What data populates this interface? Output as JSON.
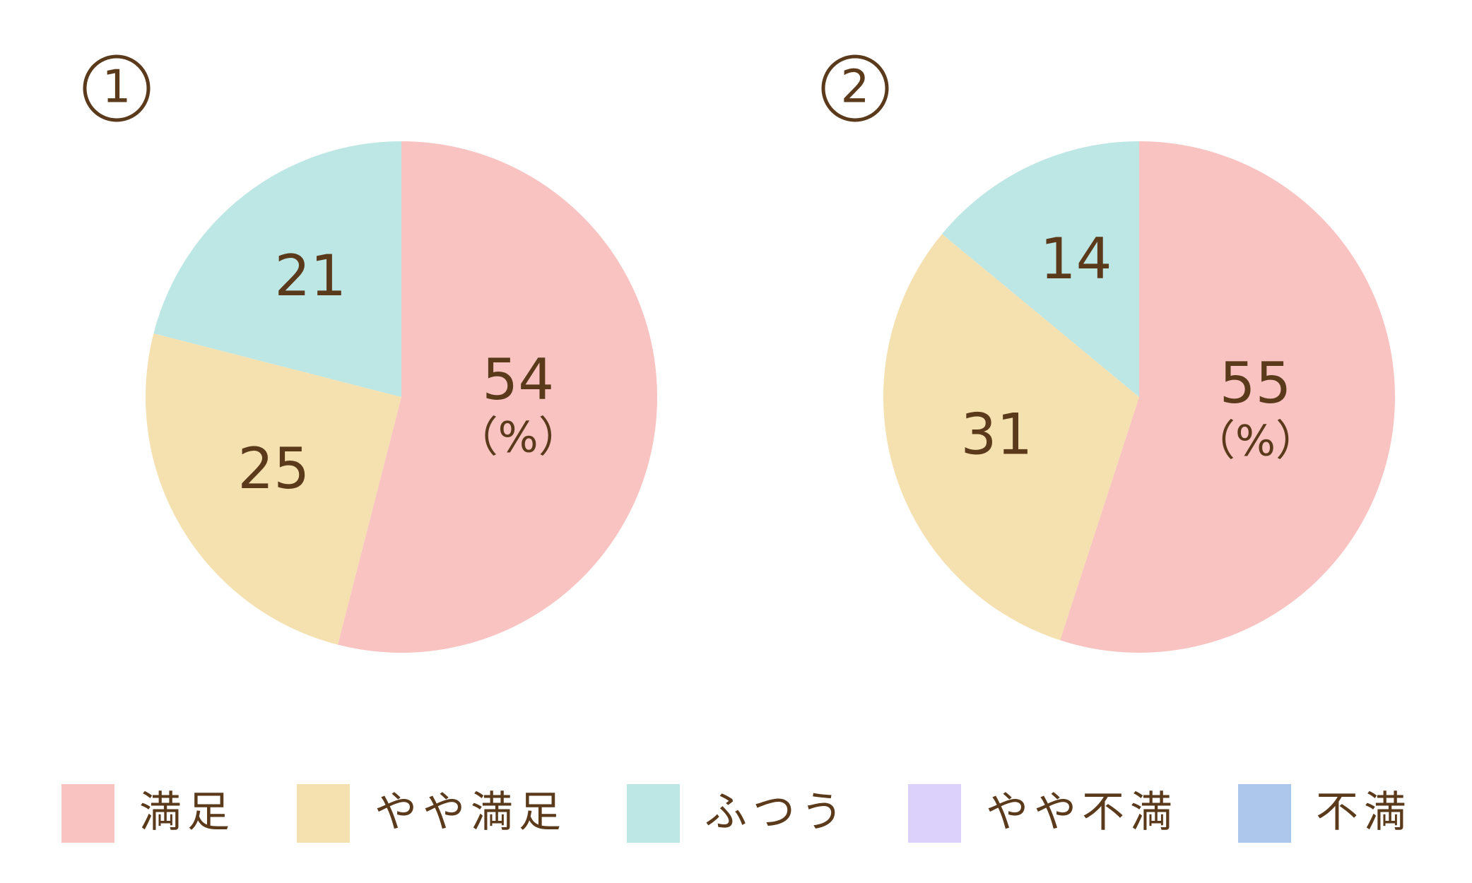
{
  "colors": {
    "text": "#5a3a1a",
    "background": "#ffffff"
  },
  "percent_unit": "（%）",
  "chart_data": [
    {
      "type": "pie",
      "panel_label": "①",
      "direction": "clockwise from 12 o'clock",
      "slices": [
        {
          "category": "満足",
          "value": 54,
          "color": "#f8c3c1"
        },
        {
          "category": "やや満足",
          "value": 25,
          "color": "#f5e0b0"
        },
        {
          "category": "ふつう",
          "value": 21,
          "color": "#bde7e5"
        }
      ]
    },
    {
      "type": "pie",
      "panel_label": "②",
      "direction": "clockwise from 12 o'clock",
      "slices": [
        {
          "category": "満足",
          "value": 55,
          "color": "#f8c3c1"
        },
        {
          "category": "やや満足",
          "value": 31,
          "color": "#f5e0b0"
        },
        {
          "category": "ふつう",
          "value": 14,
          "color": "#bde7e5"
        }
      ]
    }
  ],
  "legend": [
    {
      "label": "満足",
      "color": "#f8c3c1"
    },
    {
      "label": "やや満足",
      "color": "#f5e0b0"
    },
    {
      "label": "ふつう",
      "color": "#bde7e5"
    },
    {
      "label": "やや不満",
      "color": "#dcd1fb"
    },
    {
      "label": "不満",
      "color": "#adc6ec"
    }
  ]
}
